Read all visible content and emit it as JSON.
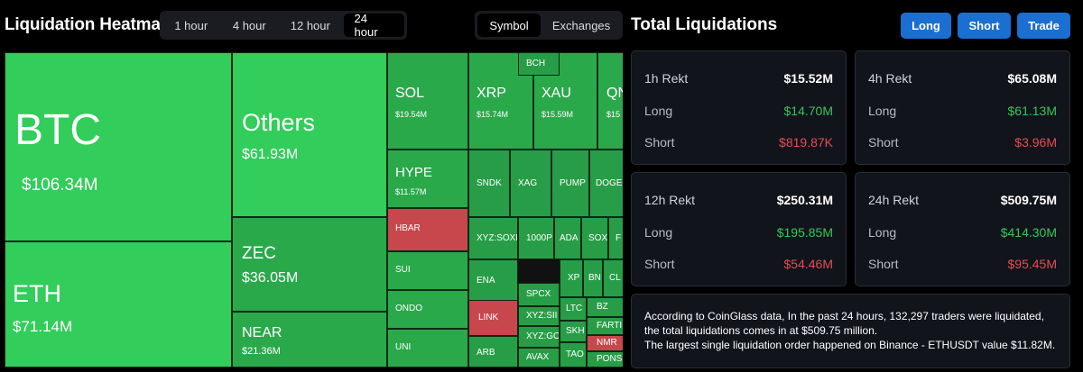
{
  "header": {
    "title": "Liquidation Heatmap",
    "time_tabs": [
      "1 hour",
      "4 hour",
      "12 hour",
      "24 hour"
    ],
    "active_time_tab": "24 hour",
    "group_tabs": [
      "Symbol",
      "Exchanges"
    ],
    "active_group_tab": "Symbol"
  },
  "total": {
    "title": "Total Liquidations",
    "buttons": [
      "Long",
      "Short",
      "Trade"
    ]
  },
  "heatmap": {
    "tiles": [
      {
        "symbol": "BTC",
        "value": "$106.34M"
      },
      {
        "symbol": "Others",
        "value": "$61.93M"
      },
      {
        "symbol": "ETH",
        "value": "$71.14M"
      },
      {
        "symbol": "ZEC",
        "value": "$36.05M"
      },
      {
        "symbol": "NEAR",
        "value": "$21.36M"
      },
      {
        "symbol": "SOL",
        "value": "$19.54M"
      },
      {
        "symbol": "XRP",
        "value": "$15.74M"
      },
      {
        "symbol": "XAU",
        "value": "$15.59M"
      },
      {
        "symbol": "QN",
        "value": "$15"
      },
      {
        "symbol": "HYPE",
        "value": "$11.57M"
      },
      {
        "symbol": "SNDK"
      },
      {
        "symbol": "XAG"
      },
      {
        "symbol": "PUMP"
      },
      {
        "symbol": "DOGE"
      },
      {
        "symbol": "HBAR"
      },
      {
        "symbol": "XYZ:SOXL"
      },
      {
        "symbol": "1000P"
      },
      {
        "symbol": "ADA"
      },
      {
        "symbol": "SOX"
      },
      {
        "symbol": "F"
      },
      {
        "symbol": "SUI"
      },
      {
        "symbol": "ENA"
      },
      {
        "symbol": "BCH"
      },
      {
        "symbol": "XP"
      },
      {
        "symbol": "BN"
      },
      {
        "symbol": "CL"
      },
      {
        "symbol": "ONDO"
      },
      {
        "symbol": "SPCX"
      },
      {
        "symbol": "LINK"
      },
      {
        "symbol": "XYZ:SII"
      },
      {
        "symbol": "LTC"
      },
      {
        "symbol": "BZ"
      },
      {
        "symbol": "SKH"
      },
      {
        "symbol": "FARTI"
      },
      {
        "symbol": "UNI"
      },
      {
        "symbol": "ARB"
      },
      {
        "symbol": "XYZ:GO"
      },
      {
        "symbol": "NMR"
      },
      {
        "symbol": "AVAX"
      },
      {
        "symbol": "TAO"
      },
      {
        "symbol": "PONS"
      }
    ]
  },
  "stats": [
    {
      "title": "1h Rekt",
      "total": "$15.52M",
      "long_label": "Long",
      "long": "$14.70M",
      "short_label": "Short",
      "short": "$819.87K"
    },
    {
      "title": "4h Rekt",
      "total": "$65.08M",
      "long_label": "Long",
      "long": "$61.13M",
      "short_label": "Short",
      "short": "$3.96M"
    },
    {
      "title": "12h Rekt",
      "total": "$250.31M",
      "long_label": "Long",
      "long": "$195.85M",
      "short_label": "Short",
      "short": "$54.46M"
    },
    {
      "title": "24h Rekt",
      "total": "$509.75M",
      "long_label": "Long",
      "long": "$414.30M",
      "short_label": "Short",
      "short": "$95.45M"
    }
  ],
  "summary": {
    "line1": "According to CoinGlass data, In the past 24 hours, 132,297 traders were liquidated, the total liquidations comes in at $509.75 million.",
    "line2": "The largest single liquidation order happened on Binance - ETHUSDT value $11.82M."
  }
}
